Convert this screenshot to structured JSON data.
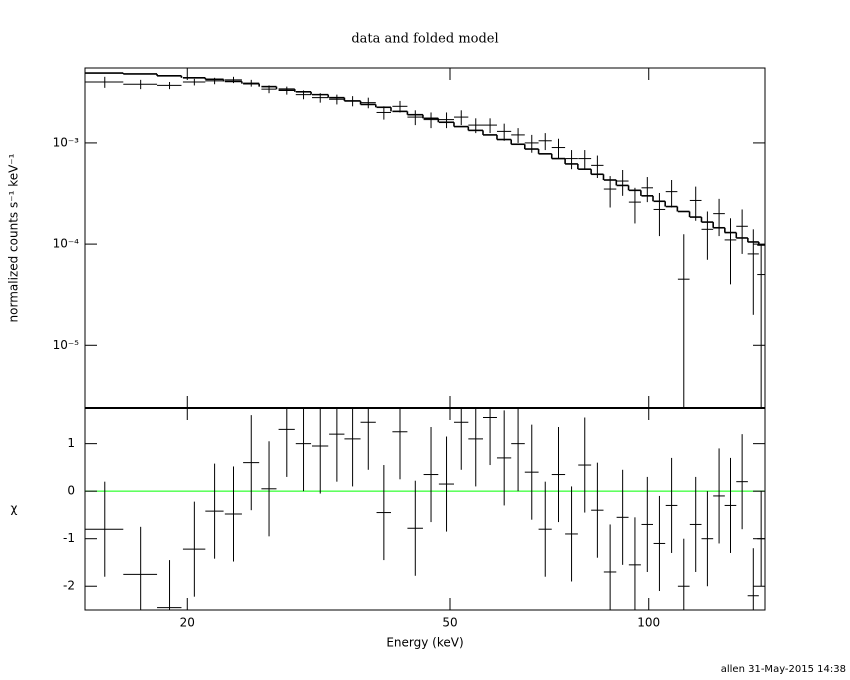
{
  "chart_data": [
    {
      "type": "spectrum",
      "title": "data and folded model",
      "y_label": "normalized counts s⁻¹ keV⁻¹",
      "log_x": true,
      "log_y": true,
      "color": "#000000",
      "xlim": [
        14,
        150
      ],
      "ylim": [
        2.4e-06,
        0.0055
      ],
      "yticks": [
        {
          "value": 0.001,
          "label": "10⁻³"
        },
        {
          "value": 0.0001,
          "label": "10⁻⁴"
        },
        {
          "value": 1e-05,
          "label": "10⁻⁵"
        }
      ],
      "x": [
        15.0,
        17.0,
        18.8,
        20.5,
        22.0,
        23.5,
        25.0,
        26.6,
        28.3,
        30.0,
        31.8,
        33.7,
        35.6,
        37.6,
        39.7,
        42.0,
        44.3,
        46.8,
        49.4,
        52.0,
        54.7,
        57.5,
        60.4,
        63.4,
        66.5,
        69.7,
        73.0,
        76.4,
        80.0,
        83.6,
        87.4,
        91.3,
        95.3,
        99.5,
        103.8,
        108.3,
        113.0,
        117.8,
        122.7,
        127.8,
        133.0,
        138.5,
        144.0,
        148.0
      ],
      "xerr": [
        1.0,
        1.0,
        0.8,
        0.8,
        0.7,
        0.7,
        0.7,
        0.7,
        0.8,
        0.8,
        0.9,
        0.9,
        1.0,
        1.0,
        1.0,
        1.1,
        1.2,
        1.2,
        1.3,
        1.3,
        1.4,
        1.4,
        1.5,
        1.5,
        1.6,
        1.6,
        1.7,
        1.7,
        1.8,
        1.8,
        1.9,
        1.9,
        2.0,
        2.0,
        2.1,
        2.2,
        2.3,
        2.4,
        2.5,
        2.6,
        2.7,
        2.8,
        2.8,
        2.0
      ],
      "values": [
        0.004,
        0.0038,
        0.0037,
        0.004,
        0.0041,
        0.0042,
        0.0039,
        0.0034,
        0.0033,
        0.003,
        0.0028,
        0.0027,
        0.0026,
        0.0025,
        0.002,
        0.0023,
        0.0018,
        0.0017,
        0.0017,
        0.0018,
        0.0015,
        0.0015,
        0.0013,
        0.0012,
        0.001,
        0.00105,
        0.0009,
        0.0007,
        0.0007,
        0.0006,
        0.00035,
        0.00042,
        0.00026,
        0.00036,
        0.00022,
        0.00033,
        4.5e-05,
        0.00027,
        0.00014,
        0.0002,
        0.00011,
        0.00015,
        8e-05,
        5e-05
      ],
      "errors": [
        0.0005,
        0.0004,
        0.0003,
        0.0003,
        0.0003,
        0.0003,
        0.0003,
        0.0003,
        0.0003,
        0.0003,
        0.0003,
        0.0003,
        0.0003,
        0.0003,
        0.0003,
        0.0003,
        0.0003,
        0.0003,
        0.0003,
        0.0003,
        0.00025,
        0.00025,
        0.00025,
        0.0002,
        0.0002,
        0.0002,
        0.0002,
        0.00015,
        0.00015,
        0.00015,
        0.00012,
        0.00012,
        0.0001,
        0.0001,
        0.0001,
        0.0001,
        8e-05,
        0.0001,
        7e-05,
        8e-05,
        7e-05,
        7e-05,
        6e-05,
        5e-05
      ],
      "model": [
        0.0049,
        0.0048,
        0.0046,
        0.0044,
        0.00425,
        0.00405,
        0.00385,
        0.0036,
        0.0034,
        0.0032,
        0.003,
        0.0028,
        0.0026,
        0.0024,
        0.00225,
        0.00205,
        0.0019,
        0.00175,
        0.0016,
        0.00145,
        0.00133,
        0.0012,
        0.00108,
        0.00097,
        0.00087,
        0.00078,
        0.0007,
        0.00062,
        0.00055,
        0.00049,
        0.00043,
        0.00038,
        0.00034,
        0.0003,
        0.000265,
        0.000235,
        0.00021,
        0.000185,
        0.000165,
        0.000145,
        0.00013,
        0.000115,
        0.000105,
        9.8e-05
      ]
    },
    {
      "type": "residual",
      "y_label": "χ",
      "x_label": "Energy (keV)",
      "color": "#000000",
      "zero_line_color": "#00ff00",
      "log_x": true,
      "xlim": [
        14,
        150
      ],
      "ylim": [
        -2.5,
        1.75
      ],
      "xticks": [
        20,
        50,
        100
      ],
      "yticks": [
        -2,
        -1,
        0,
        1
      ],
      "x": [
        15.0,
        17.0,
        18.8,
        20.5,
        22.0,
        23.5,
        25.0,
        26.6,
        28.3,
        30.0,
        31.8,
        33.7,
        35.6,
        37.6,
        39.7,
        42.0,
        44.3,
        46.8,
        49.4,
        52.0,
        54.7,
        57.5,
        60.4,
        63.4,
        66.5,
        69.7,
        73.0,
        76.4,
        80.0,
        83.6,
        87.4,
        91.3,
        95.3,
        99.5,
        103.8,
        108.3,
        113.0,
        117.8,
        122.7,
        127.8,
        133.0,
        138.5,
        144.0,
        148.0
      ],
      "xerr": [
        1.0,
        1.0,
        0.8,
        0.8,
        0.7,
        0.7,
        0.7,
        0.7,
        0.8,
        0.8,
        0.9,
        0.9,
        1.0,
        1.0,
        1.0,
        1.1,
        1.2,
        1.2,
        1.3,
        1.3,
        1.4,
        1.4,
        1.5,
        1.5,
        1.6,
        1.6,
        1.7,
        1.7,
        1.8,
        1.8,
        1.9,
        1.9,
        2.0,
        2.0,
        2.1,
        2.2,
        2.3,
        2.4,
        2.5,
        2.6,
        2.7,
        2.8,
        2.8,
        2.0
      ],
      "values": [
        -0.8,
        -1.75,
        -2.45,
        -1.22,
        -0.42,
        -0.48,
        0.6,
        0.05,
        1.3,
        1.0,
        0.95,
        1.2,
        1.1,
        1.45,
        -0.45,
        1.25,
        -0.78,
        0.35,
        0.15,
        1.45,
        1.1,
        1.55,
        0.7,
        1.0,
        0.4,
        -0.8,
        0.35,
        -0.9,
        0.55,
        -0.4,
        -1.7,
        -0.55,
        -1.55,
        -0.7,
        -1.1,
        -0.3,
        -2.0,
        -0.7,
        -1.0,
        -0.1,
        -0.3,
        0.2,
        -2.2,
        -1.0
      ],
      "errors": [
        1,
        1,
        1,
        1,
        1,
        1,
        1,
        1,
        1,
        1,
        1,
        1,
        1,
        1,
        1,
        1,
        1,
        1,
        1,
        1,
        1,
        1,
        1,
        1,
        1,
        1,
        1,
        1,
        1,
        1,
        1,
        1,
        1,
        1,
        1,
        1,
        1,
        1,
        1,
        1,
        1,
        1,
        1,
        1
      ]
    }
  ],
  "footer": "allen 31-May-2015 14:38"
}
